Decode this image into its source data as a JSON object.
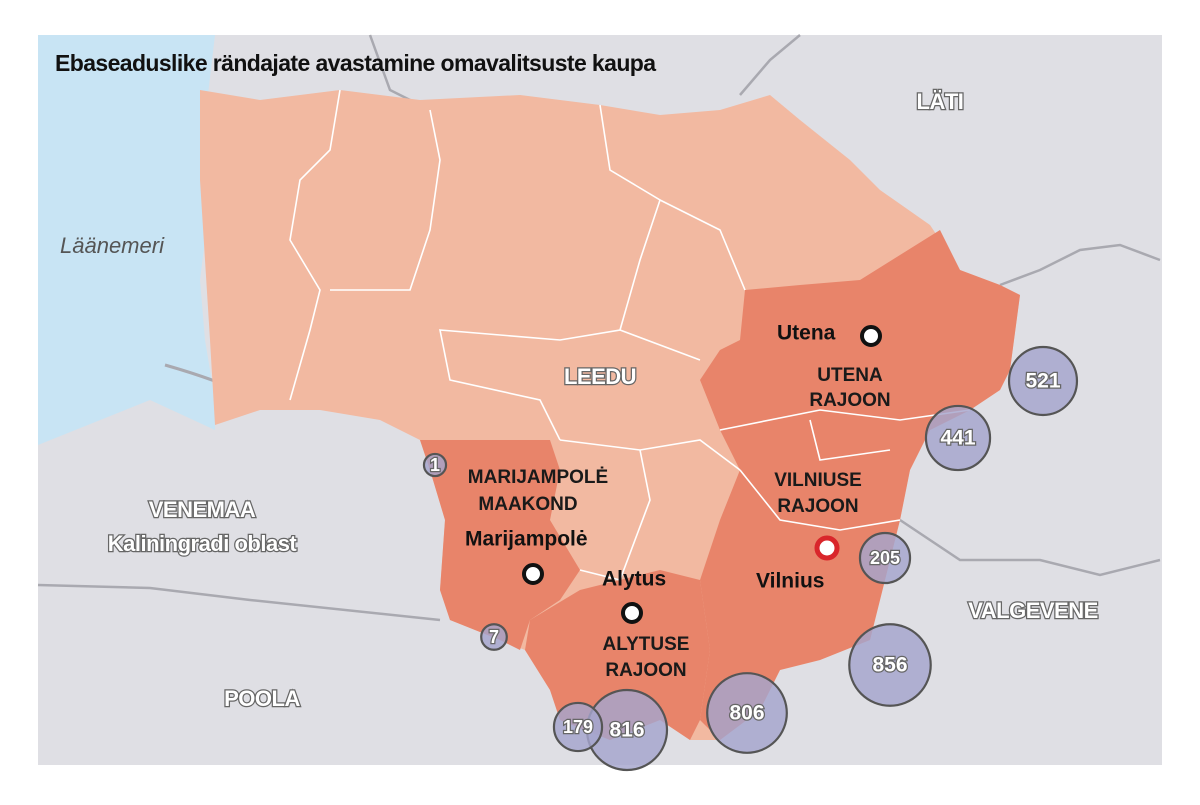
{
  "title": "Ebaseaduslike rändajate avastamine omavalitsuste kaupa",
  "sea": "Läänemeri",
  "countries": {
    "latvia": "LÄTI",
    "lithuania": "LEEDU",
    "russia": "VENEMAA",
    "russia_sub": "Kaliningradi oblast",
    "belarus": "VALGEVENE",
    "poland": "POOLA"
  },
  "regions": {
    "utena": [
      "UTENA",
      "RAJOON"
    ],
    "vilnius": [
      "VILNIUSE",
      "RAJOON"
    ],
    "marijampole": [
      "MARIJAMPOLĖ",
      "MAAKOND"
    ],
    "alytus": [
      "ALYTUSE",
      "RAJOON"
    ]
  },
  "cities": {
    "utena": "Utena",
    "marijampole": "Marijampolė",
    "alytus": "Alytus",
    "vilnius": "Vilnius"
  },
  "bubbles": [
    521,
    441,
    205,
    856,
    806,
    816,
    179,
    7,
    1
  ]
}
